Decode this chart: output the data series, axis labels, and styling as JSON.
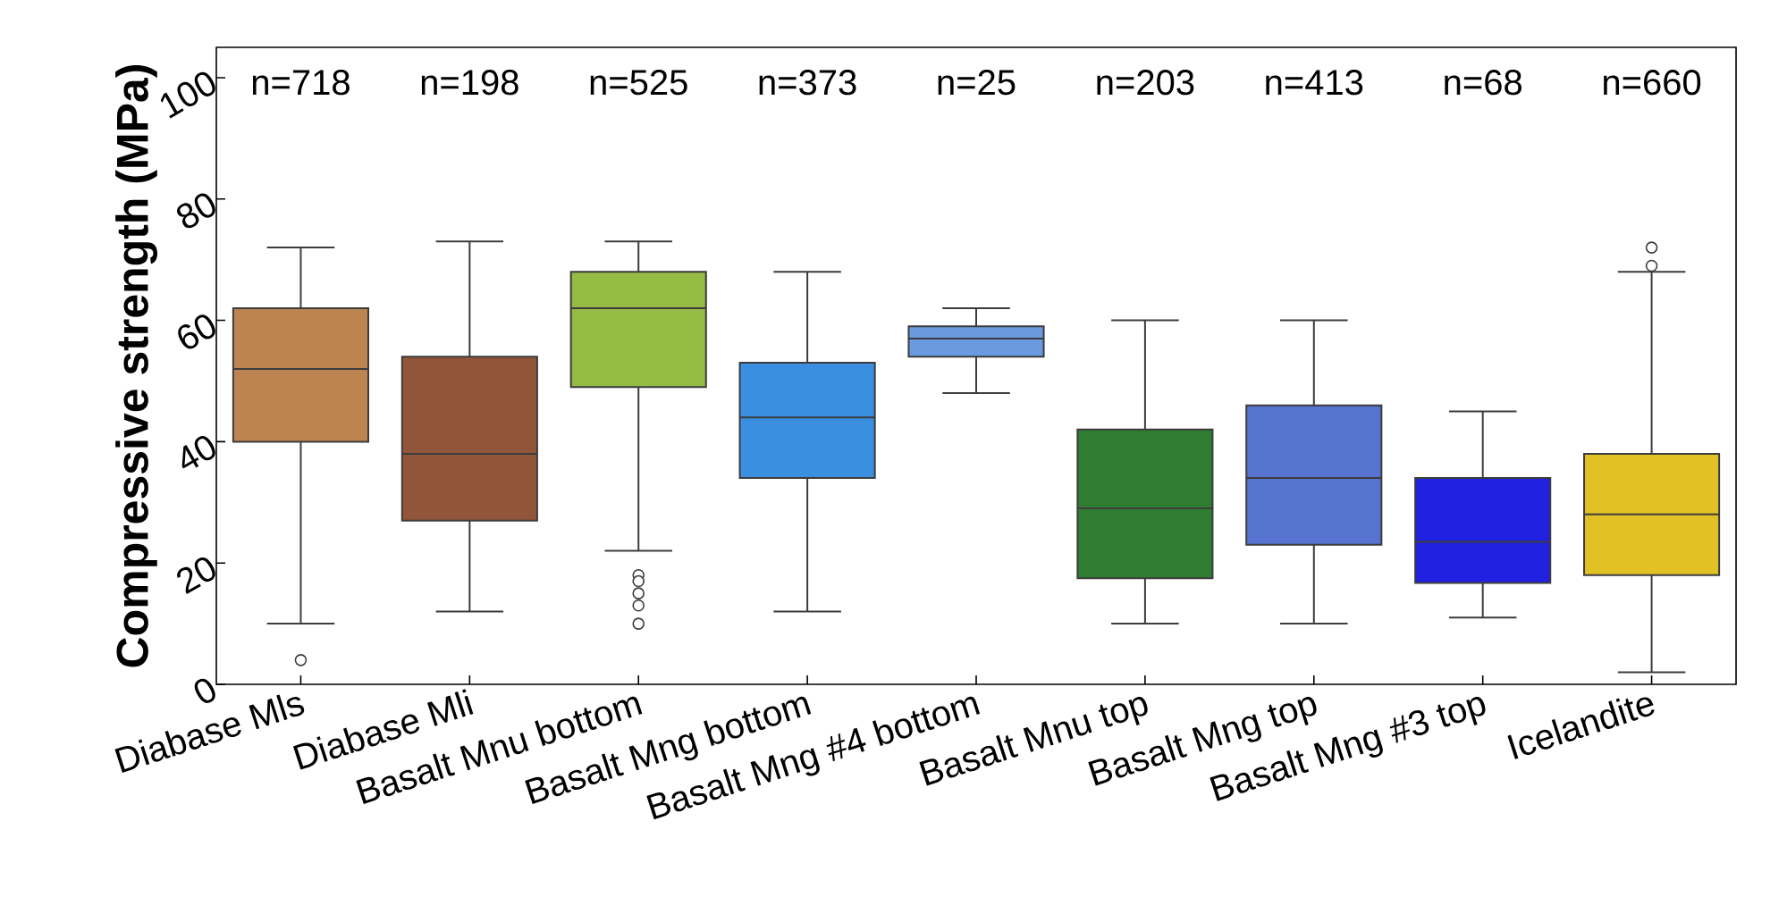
{
  "chart_data": {
    "type": "box",
    "ylabel": "Compressive strength (MPa)",
    "categories": [
      "Diabase Mls",
      "Diabase Mli",
      "Basalt Mnu bottom",
      "Basalt Mng bottom",
      "Basalt Mng #4 bottom",
      "Basalt Mnu top",
      "Basalt Mng top",
      "Basalt Mng #3 top",
      "Icelandite"
    ],
    "colors": [
      "#bb8450",
      "#91563a",
      "#95bb45",
      "#3b8fe0",
      "#6a9ae0",
      "#2f7d31",
      "#5573cf",
      "#1f20e0",
      "#e2c124"
    ],
    "boxes": [
      {
        "low": 10,
        "q1": 40,
        "median": 52,
        "q3": 62,
        "high": 72,
        "outliers": [
          4
        ]
      },
      {
        "low": 12,
        "q1": 27,
        "median": 38,
        "q3": 54,
        "high": 73
      },
      {
        "low": 22,
        "q1": 49,
        "median": 62,
        "q3": 68,
        "high": 73,
        "outliers": [
          18,
          17,
          15,
          13,
          10
        ]
      },
      {
        "low": 12,
        "q1": 34,
        "median": 44,
        "q3": 53,
        "high": 68
      },
      {
        "low": 48,
        "q1": 54,
        "median": 57,
        "q3": 59,
        "high": 62
      },
      {
        "low": 10,
        "q1": 17.5,
        "median": 29,
        "q3": 42,
        "high": 60
      },
      {
        "low": 10,
        "q1": 23,
        "median": 34,
        "q3": 46,
        "high": 60
      },
      {
        "low": 11,
        "q1": 16.7,
        "median": 23.5,
        "q3": 34,
        "high": 45
      },
      {
        "low": 2,
        "q1": 18,
        "median": 28,
        "q3": 38,
        "high": 68,
        "outliers": [
          69,
          72
        ]
      }
    ],
    "ylim": [
      0,
      105
    ],
    "yticks": [
      0,
      20,
      40,
      60,
      80,
      100
    ],
    "annotations": [
      "n=718",
      "n=198",
      "n=525",
      "n=373",
      "n=25",
      "n=203",
      "n=413",
      "n=68",
      "n=660"
    ]
  }
}
